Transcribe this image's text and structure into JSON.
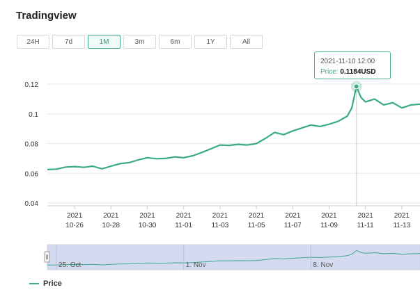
{
  "header": {
    "title": "Tradingview"
  },
  "ranges": [
    {
      "label": "24H",
      "active": false
    },
    {
      "label": "7d",
      "active": false
    },
    {
      "label": "1M",
      "active": true
    },
    {
      "label": "3m",
      "active": false
    },
    {
      "label": "6m",
      "active": false
    },
    {
      "label": "1Y",
      "active": false
    },
    {
      "label": "All",
      "active": false
    }
  ],
  "tooltip": {
    "time": "2021-11-10 12:00",
    "label": "Price: ",
    "value": "0.1184USD"
  },
  "legend": {
    "label": "Price"
  },
  "colors": {
    "line": "#3aa98c",
    "navigator_fill": "#cdd3ec",
    "grid": "#e8e8e8"
  },
  "navigator": {
    "labels": [
      "25. Oct",
      "1. Nov",
      "8. Nov"
    ]
  },
  "chart_data": {
    "type": "line",
    "title": "",
    "xlabel": "",
    "ylabel": "",
    "ylim": [
      0.04,
      0.12
    ],
    "yticks": [
      0.04,
      0.06,
      0.08,
      0.1,
      0.12
    ],
    "ytick_labels": [
      "0.04",
      "0.06",
      "0.08",
      "0.1",
      "0.12"
    ],
    "xlim": [
      "2021-10-24T12:00",
      "2021-11-14T00:00"
    ],
    "xticks": [
      "2021-10-26",
      "2021-10-28",
      "2021-10-30",
      "2021-11-01",
      "2021-11-03",
      "2021-11-05",
      "2021-11-07",
      "2021-11-09",
      "2021-11-11",
      "2021-11-13"
    ],
    "xtick_labels": [
      [
        "2021",
        "10-26"
      ],
      [
        "2021",
        "10-28"
      ],
      [
        "2021",
        "10-30"
      ],
      [
        "2021",
        "11-01"
      ],
      [
        "2021",
        "11-03"
      ],
      [
        "2021",
        "11-05"
      ],
      [
        "2021",
        "11-07"
      ],
      [
        "2021",
        "11-09"
      ],
      [
        "2021",
        "11-11"
      ],
      [
        "2021",
        "11-13"
      ]
    ],
    "grid": true,
    "legend_position": "bottom-left",
    "highlight": {
      "x": "2021-11-10T12:00",
      "y": 0.1184
    },
    "series": [
      {
        "name": "Price",
        "x": [
          "2021-10-24T12:00",
          "2021-10-25T00:00",
          "2021-10-25T12:00",
          "2021-10-26T00:00",
          "2021-10-26T12:00",
          "2021-10-27T00:00",
          "2021-10-27T12:00",
          "2021-10-28T00:00",
          "2021-10-28T12:00",
          "2021-10-29T00:00",
          "2021-10-29T12:00",
          "2021-10-30T00:00",
          "2021-10-30T12:00",
          "2021-10-31T00:00",
          "2021-10-31T12:00",
          "2021-11-01T00:00",
          "2021-11-01T12:00",
          "2021-11-02T00:00",
          "2021-11-02T12:00",
          "2021-11-03T00:00",
          "2021-11-03T12:00",
          "2021-11-04T00:00",
          "2021-11-04T12:00",
          "2021-11-05T00:00",
          "2021-11-05T12:00",
          "2021-11-06T00:00",
          "2021-11-06T12:00",
          "2021-11-07T00:00",
          "2021-11-07T12:00",
          "2021-11-08T00:00",
          "2021-11-08T12:00",
          "2021-11-09T00:00",
          "2021-11-09T12:00",
          "2021-11-10T00:00",
          "2021-11-10T06:00",
          "2021-11-10T12:00",
          "2021-11-10T18:00",
          "2021-11-11T00:00",
          "2021-11-11T12:00",
          "2021-11-12T00:00",
          "2021-11-12T12:00",
          "2021-11-13T00:00",
          "2021-11-13T12:00",
          "2021-11-14T00:00"
        ],
        "y": [
          0.0625,
          0.0628,
          0.0642,
          0.0645,
          0.064,
          0.0648,
          0.063,
          0.0648,
          0.0665,
          0.0672,
          0.069,
          0.0705,
          0.0698,
          0.07,
          0.071,
          0.0705,
          0.0718,
          0.074,
          0.0765,
          0.079,
          0.0788,
          0.0795,
          0.079,
          0.08,
          0.0835,
          0.0875,
          0.086,
          0.0885,
          0.0905,
          0.0925,
          0.0915,
          0.093,
          0.095,
          0.0985,
          0.104,
          0.1184,
          0.111,
          0.108,
          0.11,
          0.106,
          0.1075,
          0.104,
          0.106,
          0.1065
        ]
      }
    ]
  }
}
